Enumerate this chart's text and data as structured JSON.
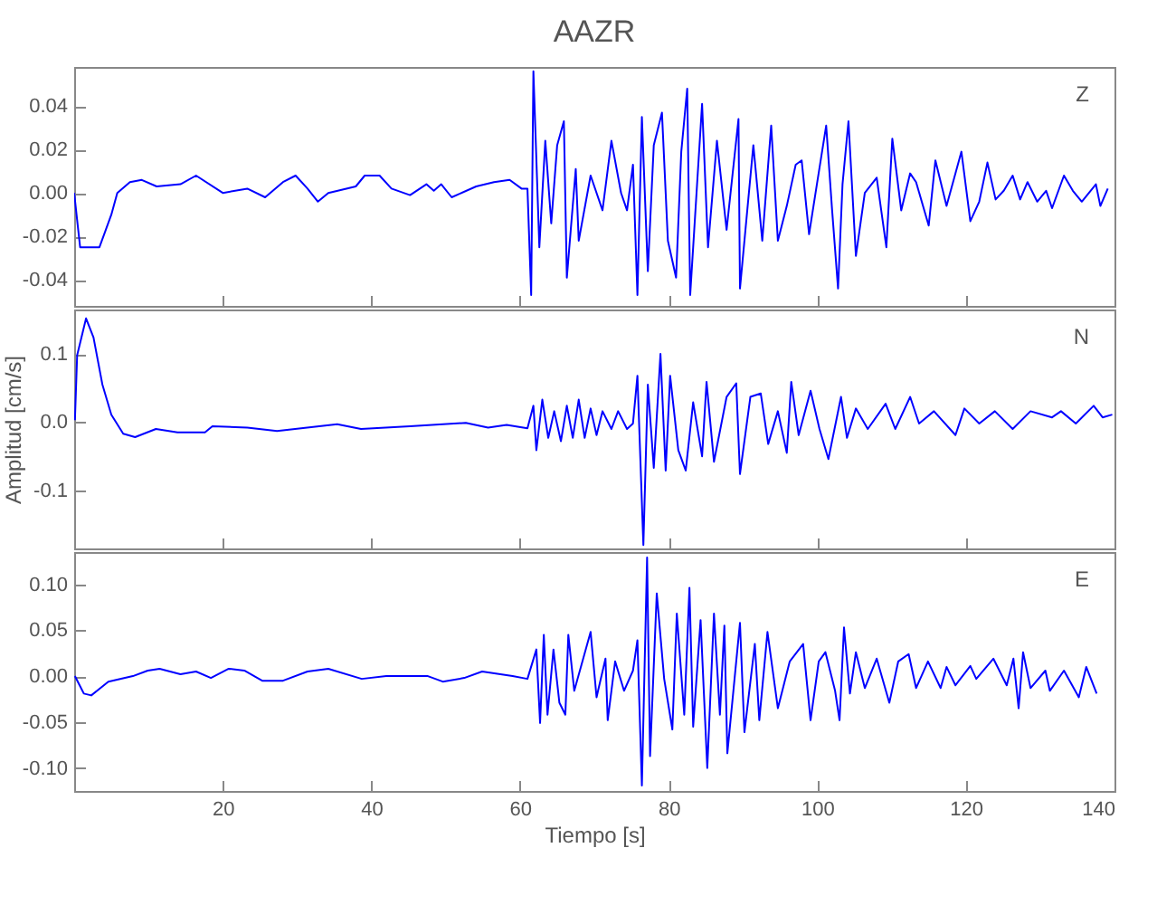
{
  "chart_data": [
    {
      "type": "line",
      "title": "AAZR",
      "annotations": [
        "Z"
      ],
      "xlim": [
        0,
        140
      ],
      "xticks": [
        20,
        40,
        60,
        80,
        100,
        120,
        140
      ],
      "ylim": [
        -0.052,
        0.058
      ],
      "yticks": [
        0.04,
        0.02,
        {
          "value": 0,
          "label": "0.00"
        },
        -0.02,
        -0.04
      ],
      "tick_labels": "y",
      "grid": false,
      "series": [
        {
          "color": "#0000ff",
          "x": [
            0,
            0.8,
            2,
            3.4,
            5,
            5.8,
            7.5,
            9.1,
            11.1,
            14.3,
            16.4,
            20,
            23.3,
            25.7,
            28.1,
            29.8,
            31.4,
            32.8,
            34.2,
            37.9,
            39.1,
            41.1,
            42.7,
            45.2,
            47.4,
            48.4,
            49.4,
            50.8,
            54.1,
            56.5,
            58.6,
            60.2,
            61,
            61.5,
            61.8,
            62.6,
            63.4,
            64.2,
            65,
            65.9,
            66.3,
            67.5,
            67.9,
            69.5,
            71.1,
            72.3,
            73.6,
            74.4,
            75.2,
            75.8,
            76.4,
            77.2,
            78,
            79.1,
            79.9,
            81,
            81.7,
            82.5,
            82.9,
            84.5,
            85.3,
            86.5,
            87.8,
            89.4,
            89.6,
            91.4,
            92.6,
            93.8,
            94.7,
            95.9,
            97.1,
            97.9,
            98.9,
            100,
            101.2,
            102,
            102.8,
            103.4,
            104.2,
            105.2,
            106.4,
            108,
            109.3,
            110.1,
            111.3,
            112.5,
            113.3,
            115,
            115.9,
            117.4,
            119.4,
            120.6,
            121.8,
            122.9,
            124,
            125.1,
            126.3,
            127.3,
            128.3,
            129.6,
            130.8,
            131.6,
            133.2,
            134.4,
            135.6,
            137.5,
            138.1,
            139.1
          ],
          "values": [
            0,
            -0.025,
            -0.025,
            -0.025,
            -0.01,
            0,
            0.005,
            0.006,
            0.003,
            0.004,
            0.008,
            0,
            0.002,
            -0.002,
            0.005,
            0.008,
            0.002,
            -0.004,
            0,
            0.003,
            0.008,
            0.008,
            0.002,
            -0.001,
            0.004,
            0.001,
            0.004,
            -0.002,
            0.003,
            0.005,
            0.006,
            0.002,
            0.002,
            -0.047,
            0.056,
            -0.025,
            0.024,
            -0.014,
            0.022,
            0.033,
            -0.039,
            0.011,
            -0.022,
            0.008,
            -0.008,
            0.024,
            0,
            -0.008,
            0.013,
            -0.047,
            0.035,
            -0.036,
            0.022,
            0.037,
            -0.022,
            -0.039,
            0.019,
            0.048,
            -0.047,
            0.041,
            -0.025,
            0.024,
            -0.017,
            0.034,
            -0.044,
            0.022,
            -0.022,
            0.031,
            -0.022,
            -0.006,
            0.013,
            0.015,
            -0.019,
            0.005,
            0.031,
            -0.008,
            -0.044,
            0.004,
            0.033,
            -0.029,
            0,
            0.007,
            -0.025,
            0.025,
            -0.008,
            0.009,
            0.005,
            -0.015,
            0.015,
            -0.006,
            0.019,
            -0.013,
            -0.004,
            0.014,
            -0.003,
            0.001,
            0.008,
            -0.003,
            0.005,
            -0.004,
            0.001,
            -0.007,
            0.008,
            0.001,
            -0.004,
            0.004,
            -0.006,
            0.002
          ]
        }
      ]
    },
    {
      "type": "line",
      "ylabel": "Amplitud  [cm/s]",
      "annotations": [
        "N"
      ],
      "xlim": [
        0,
        140
      ],
      "xticks": [
        20,
        40,
        60,
        80,
        100,
        120,
        140
      ],
      "ylim": [
        -0.185,
        0.165
      ],
      "yticks": [
        0.1,
        {
          "value": 0,
          "label": "0.0"
        },
        -0.1
      ],
      "tick_labels": "y",
      "grid": false,
      "series": [
        {
          "color": "#0000ff",
          "x": [
            0.1,
            0.4,
            1.6,
            2.6,
            3.8,
            5,
            6.6,
            8.2,
            11,
            13.9,
            17.6,
            18.6,
            23.3,
            27.3,
            35.4,
            38.6,
            45.2,
            52.7,
            55.7,
            58.2,
            61,
            61.8,
            62.2,
            63,
            63.8,
            64.6,
            65.5,
            66.3,
            67.1,
            67.9,
            68.7,
            69.5,
            70.3,
            71.1,
            72.3,
            73.2,
            74.4,
            75.2,
            75.8,
            76.6,
            77.2,
            78,
            78.9,
            79.6,
            80.2,
            81.3,
            82.3,
            83.3,
            84.5,
            85.1,
            86.1,
            87.8,
            89.1,
            89.6,
            91,
            92.4,
            93.4,
            94.7,
            95.9,
            96.5,
            97.5,
            99.1,
            100.3,
            101.5,
            103.2,
            104,
            105.2,
            106.8,
            109.2,
            110.5,
            112.5,
            113.7,
            115.7,
            118.6,
            119.8,
            121.8,
            123.9,
            126.3,
            128.7,
            131.6,
            132.8,
            134.8,
            137.2,
            138.4,
            139.7
          ],
          "values": [
            0.003,
            0.098,
            0.152,
            0.124,
            0.055,
            0.011,
            -0.017,
            -0.022,
            -0.01,
            -0.015,
            -0.015,
            -0.006,
            -0.008,
            -0.013,
            -0.003,
            -0.01,
            -0.006,
            -0.001,
            -0.008,
            -0.004,
            -0.009,
            0.024,
            -0.041,
            0.033,
            -0.023,
            0.016,
            -0.028,
            0.024,
            -0.023,
            0.033,
            -0.023,
            0.02,
            -0.019,
            0.016,
            -0.01,
            0.016,
            -0.01,
            -0.002,
            0.068,
            -0.18,
            0.055,
            -0.067,
            0.1,
            -0.071,
            0.068,
            -0.041,
            -0.071,
            0.029,
            -0.05,
            0.059,
            -0.058,
            0.037,
            0.057,
            -0.076,
            0.037,
            0.042,
            -0.032,
            0.016,
            -0.045,
            0.059,
            -0.019,
            0.046,
            -0.01,
            -0.054,
            0.037,
            -0.023,
            0.02,
            -0.01,
            0.027,
            -0.01,
            0.037,
            -0.002,
            0.016,
            -0.019,
            0.02,
            -0.002,
            0.016,
            -0.01,
            0.016,
            0.007,
            0.016,
            -0.002,
            0.024,
            0.007,
            0.011
          ]
        }
      ]
    },
    {
      "type": "line",
      "xlabel": "Tiempo  [s]",
      "annotations": [
        "E"
      ],
      "xlim": [
        0,
        140
      ],
      "xticks": [
        20,
        40,
        60,
        80,
        100,
        120,
        140
      ],
      "ylim": [
        -0.125,
        0.135
      ],
      "yticks": [
        {
          "value": 0.1,
          "label": "0.10"
        },
        0.05,
        {
          "value": 0,
          "label": "0.00"
        },
        -0.05,
        {
          "value": -0.1,
          "label": "-0.10"
        }
      ],
      "grid": false,
      "series": [
        {
          "color": "#0000ff",
          "x": [
            0.1,
            1.3,
            2.3,
            4.6,
            7.9,
            9.9,
            11.5,
            14.3,
            16.4,
            18.4,
            20.8,
            22.9,
            25.3,
            28.1,
            31.4,
            34.2,
            38.7,
            42,
            47.6,
            49.6,
            52.5,
            54.9,
            59,
            61,
            62.2,
            62.7,
            63.2,
            63.7,
            64.5,
            65.3,
            66.1,
            66.5,
            67.3,
            69.5,
            70.3,
            71.5,
            71.8,
            72.8,
            74,
            75.2,
            75.8,
            76.4,
            77.1,
            77.5,
            78.4,
            79.4,
            80.5,
            81.1,
            82.1,
            82.8,
            83.3,
            84.3,
            85.2,
            86.1,
            86.9,
            87.5,
            87.9,
            89.6,
            90.2,
            91.6,
            92.2,
            93.3,
            94.7,
            96.3,
            98.1,
            99.1,
            100.2,
            101.1,
            102.4,
            103,
            103.6,
            104.4,
            105.2,
            106.4,
            108,
            109.7,
            110.9,
            112.3,
            113.3,
            114.9,
            116.6,
            117.4,
            118.6,
            120.6,
            121.4,
            123.7,
            125.5,
            126.4,
            127.1,
            127.7,
            128.7,
            130.7,
            131.3,
            133.2,
            135.2,
            136.2,
            137.6
          ],
          "values": [
            0,
            -0.019,
            -0.021,
            -0.006,
            0,
            0.006,
            0.008,
            0.002,
            0.005,
            -0.002,
            0.008,
            0.006,
            -0.005,
            -0.005,
            0.005,
            0.008,
            -0.003,
            0,
            0,
            -0.006,
            -0.002,
            0.005,
            0,
            -0.003,
            0.029,
            -0.051,
            0.045,
            -0.042,
            0.029,
            -0.029,
            -0.042,
            0.045,
            -0.016,
            0.048,
            -0.023,
            0.019,
            -0.048,
            0.016,
            -0.016,
            0.006,
            0.039,
            -0.119,
            0.129,
            -0.087,
            0.09,
            -0.003,
            -0.058,
            0.068,
            -0.042,
            0.096,
            -0.055,
            0.061,
            -0.1,
            0.068,
            -0.042,
            0.055,
            -0.084,
            0.058,
            -0.061,
            0.035,
            -0.048,
            0.048,
            -0.035,
            0.016,
            0.035,
            -0.048,
            0.016,
            0.026,
            -0.016,
            -0.048,
            0.053,
            -0.019,
            0.026,
            -0.013,
            0.019,
            -0.029,
            0.016,
            0.024,
            -0.013,
            0.016,
            -0.013,
            0.01,
            -0.01,
            0.011,
            -0.003,
            0.019,
            -0.01,
            0.019,
            -0.035,
            0.026,
            -0.013,
            0.006,
            -0.016,
            0.006,
            -0.023,
            0.01,
            -0.019
          ]
        }
      ]
    }
  ]
}
